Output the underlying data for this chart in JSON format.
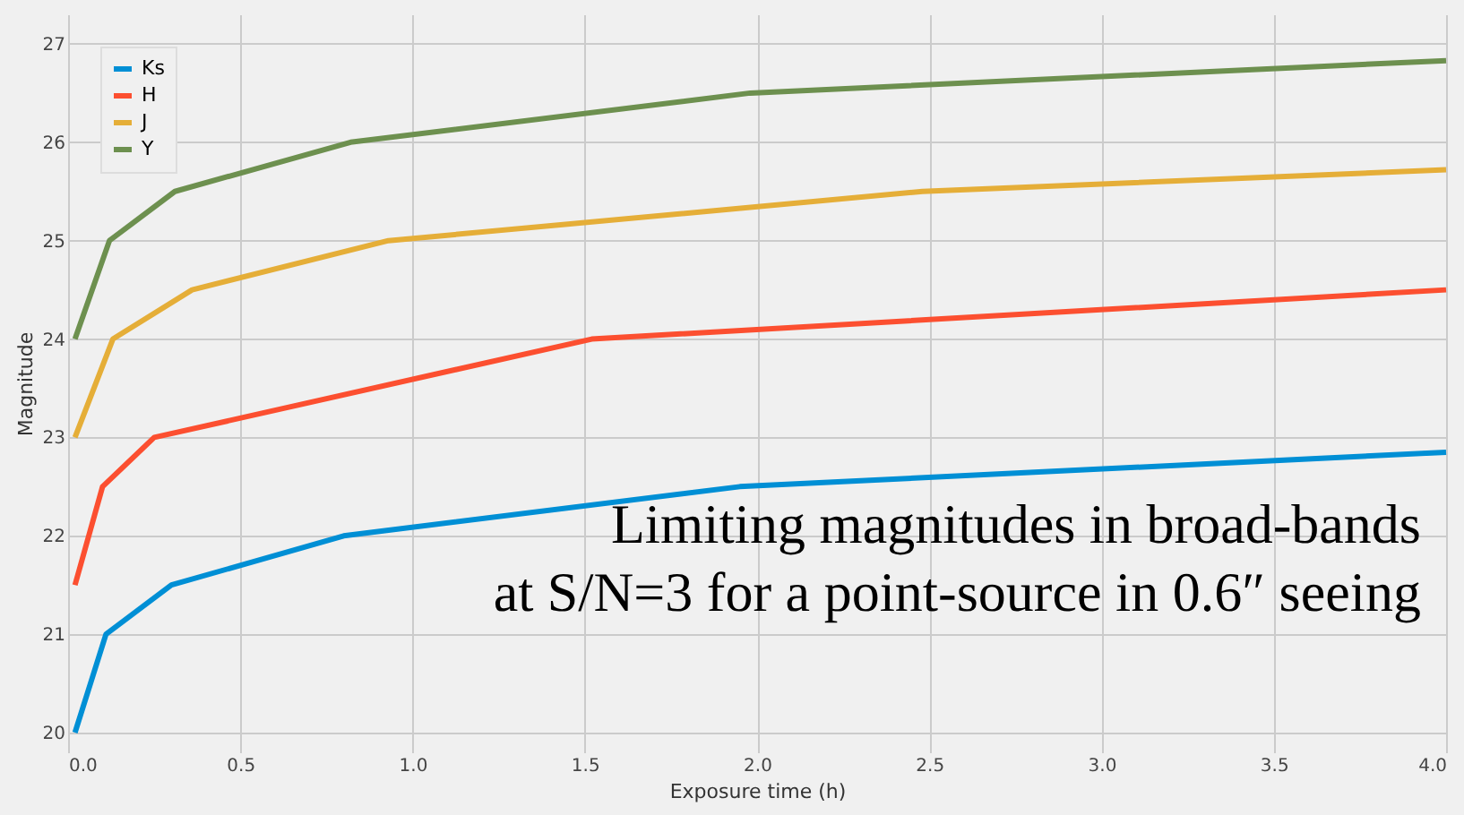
{
  "chart_data": {
    "type": "line",
    "xlabel": "Exposure time (h)",
    "ylabel": "Magnitude",
    "xlim": [
      0,
      4
    ],
    "ylim": [
      19.8,
      27.3
    ],
    "xticks": [
      {
        "value": 0,
        "label": "0.0"
      },
      {
        "value": 0.5,
        "label": "0.5"
      },
      {
        "value": 1,
        "label": "1.0"
      },
      {
        "value": 1.5,
        "label": "1.5"
      },
      {
        "value": 2,
        "label": "2.0"
      },
      {
        "value": 2.5,
        "label": "2.5"
      },
      {
        "value": 3,
        "label": "3.0"
      },
      {
        "value": 3.5,
        "label": "3.5"
      },
      {
        "value": 4,
        "label": "4.0"
      }
    ],
    "yticks": [
      20,
      21,
      22,
      23,
      24,
      25,
      26,
      27
    ],
    "series": [
      {
        "name": "Ks",
        "color": "#008fd5",
        "x": [
          0.02,
          0.11,
          0.3,
          0.8,
          1.95,
          4.0
        ],
        "values": [
          20,
          21,
          21.5,
          22,
          22.5,
          22.85
        ]
      },
      {
        "name": "H",
        "color": "#fc4f30",
        "x": [
          0.02,
          0.1,
          0.25,
          1.52,
          4.0
        ],
        "values": [
          21.5,
          22.5,
          23,
          24,
          24.5
        ]
      },
      {
        "name": "J",
        "color": "#e5ae38",
        "x": [
          0.02,
          0.13,
          0.36,
          0.93,
          2.48,
          4.0
        ],
        "values": [
          23,
          24,
          24.5,
          25,
          25.5,
          25.72
        ]
      },
      {
        "name": "Y",
        "color": "#6d904f",
        "x": [
          0.02,
          0.12,
          0.31,
          0.82,
          1.98,
          4.0
        ],
        "values": [
          24,
          25,
          25.5,
          26,
          26.5,
          26.83
        ]
      }
    ],
    "grid": true,
    "legend": "top left",
    "marker": "none",
    "line_style": "solid",
    "annotations": [
      "Limiting magnitudes in broad-bands",
      "at S/N=3 for a point-source in 0.6″ seeing"
    ]
  }
}
